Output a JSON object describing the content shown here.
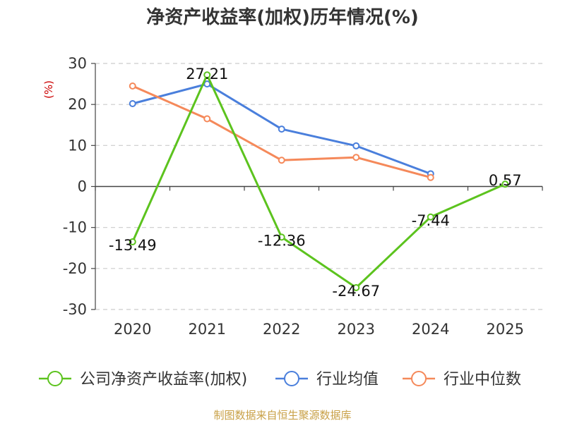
{
  "chart_data": {
    "type": "line",
    "title": "净资产收益率(加权)历年情况(%)",
    "ylabel": "(%)",
    "xlabel": "",
    "categories": [
      "2020",
      "2021",
      "2022",
      "2023",
      "2024",
      "2025"
    ],
    "ylim": [
      -30,
      30
    ],
    "yticks": [
      30,
      20,
      10,
      0,
      -10,
      -20,
      -30
    ],
    "grid": true,
    "legend_position": "bottom",
    "series": [
      {
        "name": "公司净资产收益率(加权)",
        "color": "#5cc31e",
        "values": [
          -13.49,
          27.21,
          -12.36,
          -24.67,
          -7.44,
          0.57
        ],
        "labels": [
          "-13.49",
          "27.21",
          "-12.36",
          "-24.67",
          "-7.44",
          "0.57"
        ]
      },
      {
        "name": "行业均值",
        "color": "#4a7fdc",
        "values": [
          20.2,
          25.0,
          14.0,
          9.9,
          3.1,
          null
        ]
      },
      {
        "name": "行业中位数",
        "color": "#f5895a",
        "values": [
          24.5,
          16.5,
          6.4,
          7.1,
          2.2,
          null
        ]
      }
    ]
  },
  "footer": {
    "source": "制图数据来自恒生聚源数据库"
  }
}
